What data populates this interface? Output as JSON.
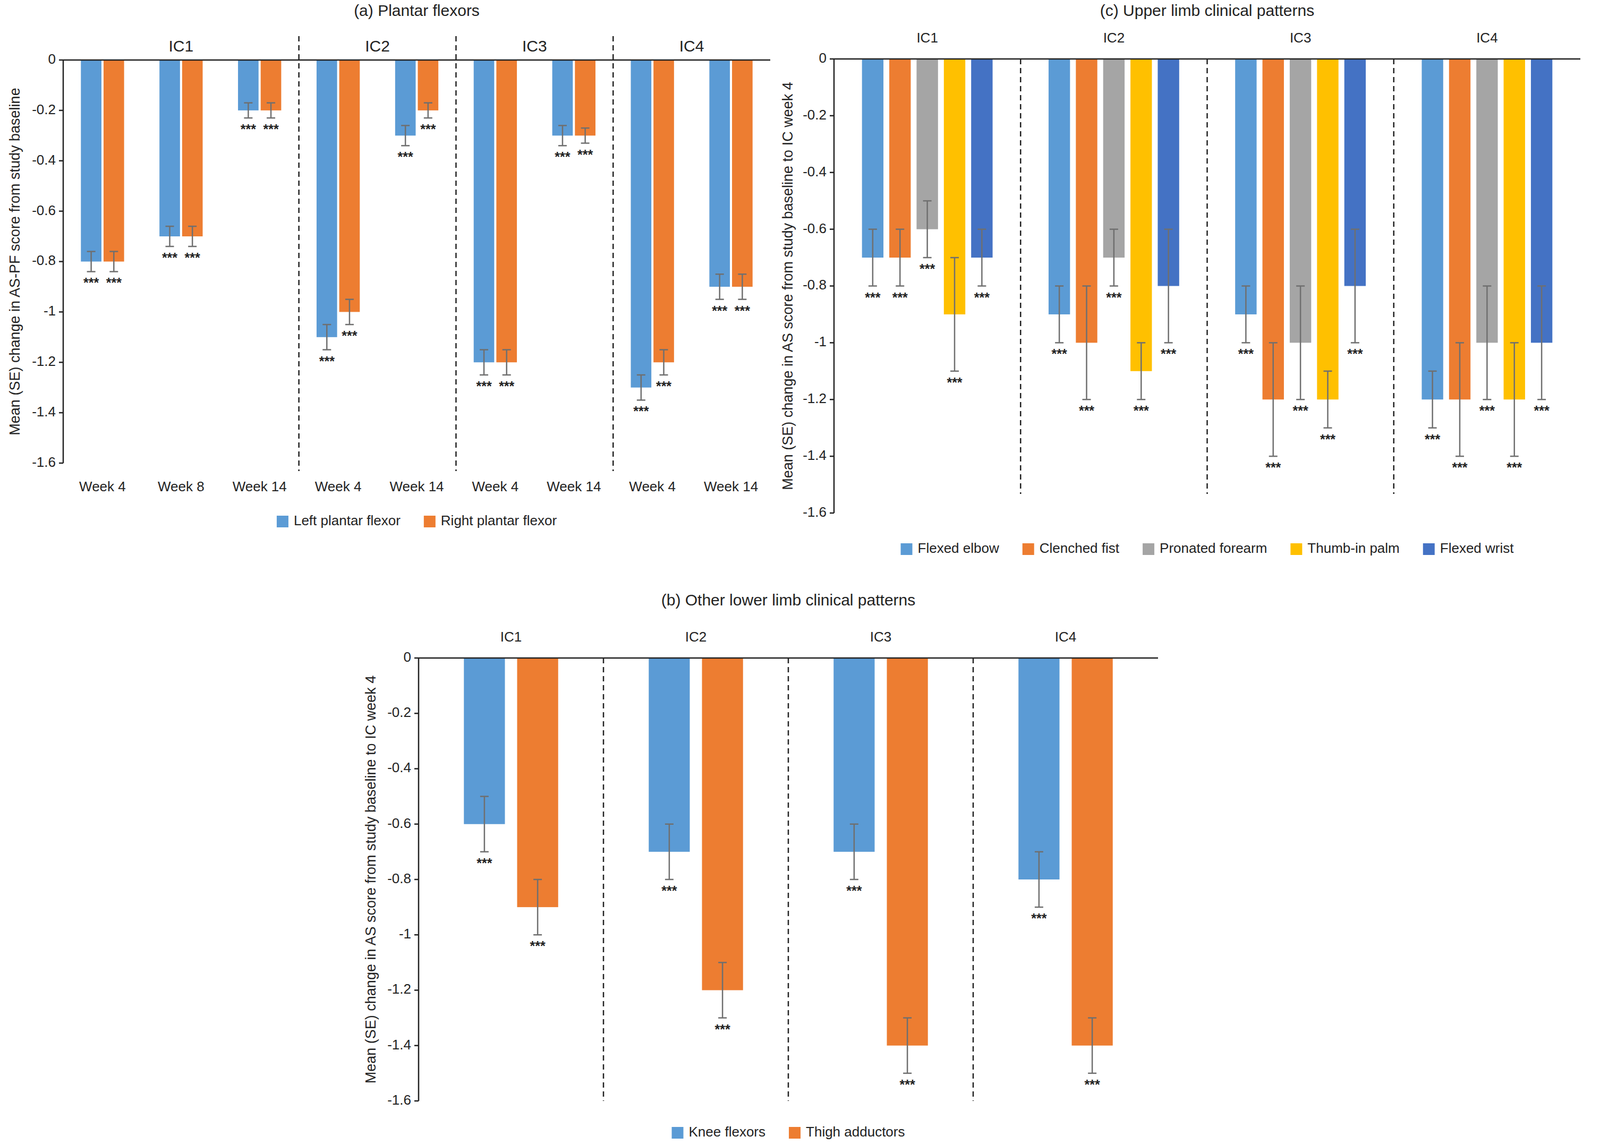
{
  "chart_data": [
    {
      "type": "bar",
      "title": "(a) Plantar flexors",
      "y_label": "Mean (SE) change in AS-PF score from study baseline",
      "categories": [
        "Week 4",
        "Week 8",
        "Week 14",
        "Week 4",
        "Week 14",
        "Week 4",
        "Week 14",
        "Week 4",
        "Week 14"
      ],
      "category_groups": [
        "IC1",
        "IC1",
        "IC1",
        "IC2",
        "IC2",
        "IC3",
        "IC3",
        "IC4",
        "IC4"
      ],
      "series": [
        {
          "name": "Left plantar flexor",
          "color": "#5b9bd5",
          "values": [
            -0.8,
            -0.7,
            -0.2,
            -1.1,
            -0.3,
            -1.2,
            -0.3,
            -1.3,
            -0.9
          ],
          "errors": [
            0.04,
            0.04,
            0.03,
            0.05,
            0.04,
            0.05,
            0.04,
            0.05,
            0.05
          ],
          "annotations": [
            "***",
            "***",
            "***",
            "***",
            "***",
            "***",
            "***",
            "***",
            "***"
          ]
        },
        {
          "name": "Right plantar flexor",
          "color": "#ed7d31",
          "values": [
            -0.8,
            -0.7,
            -0.2,
            -1.0,
            -0.2,
            -1.2,
            -0.3,
            -1.2,
            -0.9
          ],
          "errors": [
            0.04,
            0.04,
            0.03,
            0.05,
            0.03,
            0.05,
            0.03,
            0.05,
            0.05
          ],
          "annotations": [
            "***",
            "***",
            "***",
            "***",
            "***",
            "***",
            "***",
            "***",
            "***"
          ]
        }
      ],
      "ylim": [
        -1.6,
        0
      ],
      "yticks": [
        0,
        -0.2,
        -0.4,
        -0.6,
        -0.8,
        -1,
        -1.2,
        -1.4,
        -1.6
      ],
      "grid": false,
      "legend": "bottom"
    },
    {
      "type": "bar",
      "title": "(b) Other lower limb clinical patterns",
      "y_label": "Mean (SE) change in AS score from study baseline to IC week 4",
      "categories": [
        "IC1",
        "IC2",
        "IC3",
        "IC4"
      ],
      "series": [
        {
          "name": "Knee flexors",
          "color": "#5b9bd5",
          "values": [
            -0.6,
            -0.7,
            -0.7,
            -0.8
          ],
          "errors": [
            0.1,
            0.1,
            0.1,
            0.1
          ],
          "annotations": [
            "***",
            "***",
            "***",
            "***"
          ]
        },
        {
          "name": "Thigh adductors",
          "color": "#ed7d31",
          "values": [
            -0.9,
            -1.2,
            -1.4,
            -1.4
          ],
          "errors": [
            0.1,
            0.1,
            0.1,
            0.1
          ],
          "annotations": [
            "***",
            "***",
            "***",
            "***"
          ]
        }
      ],
      "ylim": [
        -1.6,
        0
      ],
      "yticks": [
        0,
        -0.2,
        -0.4,
        -0.6,
        -0.8,
        -1,
        -1.2,
        -1.4,
        -1.6
      ],
      "grid": false,
      "legend": "bottom"
    },
    {
      "type": "bar",
      "title": "(c) Upper limb clinical patterns",
      "y_label": "Mean (SE) change in AS score from study baseline to IC week 4",
      "categories": [
        "IC1",
        "IC2",
        "IC3",
        "IC4"
      ],
      "series": [
        {
          "name": "Flexed elbow",
          "color": "#5b9bd5",
          "values": [
            -0.7,
            -0.9,
            -0.9,
            -1.2
          ],
          "errors": [
            0.1,
            0.1,
            0.1,
            0.1
          ],
          "annotations": [
            "***",
            "***",
            "***",
            "***"
          ]
        },
        {
          "name": "Clenched fist",
          "color": "#ed7d31",
          "values": [
            -0.7,
            -1.0,
            -1.2,
            -1.2
          ],
          "errors": [
            0.1,
            0.2,
            0.2,
            0.2
          ],
          "annotations": [
            "***",
            "***",
            "***",
            "***"
          ]
        },
        {
          "name": "Pronated forearm",
          "color": "#a5a5a5",
          "values": [
            -0.6,
            -0.7,
            -1.0,
            -1.0
          ],
          "errors": [
            0.1,
            0.1,
            0.2,
            0.2
          ],
          "annotations": [
            "***",
            "***",
            "***",
            "***"
          ]
        },
        {
          "name": "Thumb-in palm",
          "color": "#ffc000",
          "values": [
            -0.9,
            -1.1,
            -1.2,
            -1.2
          ],
          "errors": [
            0.2,
            0.1,
            0.1,
            0.2
          ],
          "annotations": [
            "***",
            "***",
            "***",
            "***"
          ]
        },
        {
          "name": "Flexed wrist",
          "color": "#4472c4",
          "values": [
            -0.7,
            -0.8,
            -0.8,
            -1.0
          ],
          "errors": [
            0.1,
            0.2,
            0.2,
            0.2
          ],
          "annotations": [
            "***",
            "***",
            "***",
            "***"
          ]
        }
      ],
      "ylim": [
        -1.6,
        0
      ],
      "yticks": [
        0,
        -0.2,
        -0.4,
        -0.6,
        -0.8,
        -1,
        -1.2,
        -1.4,
        -1.6
      ],
      "grid": false,
      "legend": "bottom"
    }
  ]
}
